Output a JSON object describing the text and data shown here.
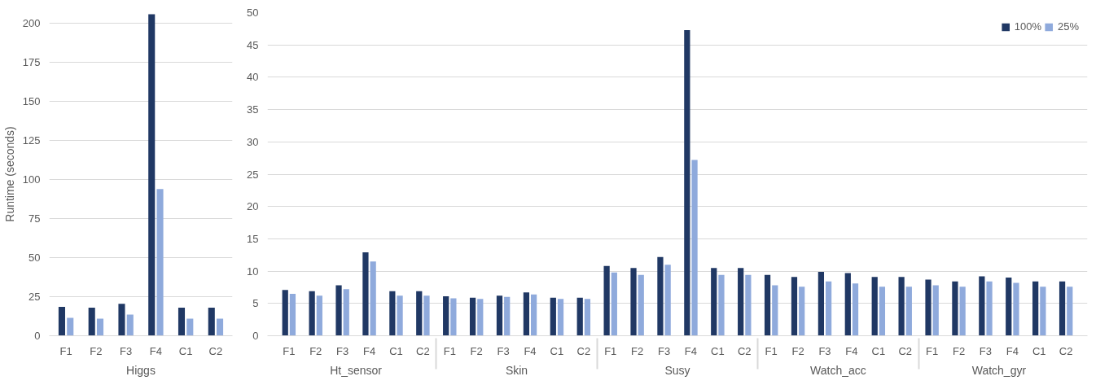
{
  "chart_data": [
    {
      "type": "bar",
      "ylabel": "Runtime (seconds)",
      "categories": [
        "F1",
        "F2",
        "F3",
        "F4",
        "C1",
        "C2"
      ],
      "annotations": [
        "Higgs"
      ],
      "series": [
        {
          "color": "#203864",
          "values": [
            18.5,
            18,
            20.5,
            206,
            18,
            18
          ]
        },
        {
          "color": "#8faadc",
          "values": [
            11.5,
            11,
            13.5,
            94,
            11,
            11
          ]
        }
      ],
      "ylim": [
        0,
        207
      ],
      "yticks": [
        0,
        25,
        50,
        75,
        100,
        125,
        150,
        175,
        200
      ],
      "grid": "y",
      "legend": false
    },
    {
      "type": "bar",
      "categories": [
        "F1",
        "F2",
        "F3",
        "F4",
        "C1",
        "C2",
        "F1",
        "F2",
        "F3",
        "F4",
        "C1",
        "C2",
        "F1",
        "F2",
        "F3",
        "F4",
        "C1",
        "C2",
        "F1",
        "F2",
        "F3",
        "F4",
        "C1",
        "C2",
        "F1",
        "F2",
        "F3",
        "F4",
        "C1",
        "C2"
      ],
      "annotations": [
        "Ht_sensor",
        "Skin",
        "Susy",
        "Watch_acc",
        "Watch_gyr"
      ],
      "series": [
        {
          "name": "100%",
          "color": "#203864",
          "values": [
            7.1,
            6.9,
            7.8,
            12.9,
            6.9,
            6.9,
            6.1,
            5.9,
            6.2,
            6.7,
            5.9,
            5.9,
            10.8,
            10.5,
            12.2,
            47.3,
            10.5,
            10.5,
            9.4,
            9.1,
            9.9,
            9.7,
            9.1,
            9.1,
            8.7,
            8.4,
            9.2,
            9.0,
            8.4,
            8.4
          ]
        },
        {
          "name": "25%",
          "color": "#8faadc",
          "values": [
            6.5,
            6.2,
            7.2,
            11.5,
            6.2,
            6.2,
            5.8,
            5.7,
            6.0,
            6.4,
            5.7,
            5.7,
            9.8,
            9.4,
            11.0,
            27.2,
            9.4,
            9.4,
            7.8,
            7.6,
            8.4,
            8.1,
            7.6,
            7.6,
            7.8,
            7.6,
            8.4,
            8.2,
            7.6,
            7.6
          ]
        }
      ],
      "ylim": [
        0,
        50
      ],
      "yticks": [
        0,
        5,
        10,
        15,
        20,
        25,
        30,
        35,
        40,
        45,
        50
      ],
      "grid": "y",
      "legend": "top right"
    }
  ]
}
